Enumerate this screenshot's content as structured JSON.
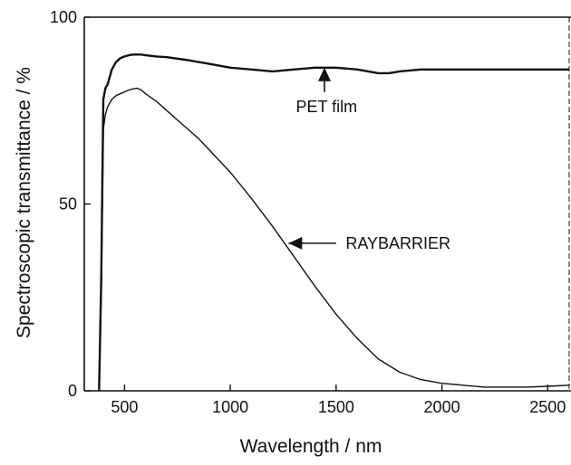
{
  "chart_data": {
    "type": "line",
    "xlabel": "Wavelength / nm",
    "ylabel": "Spectroscopic transmittance / %",
    "xlim": [
      310,
      2610
    ],
    "ylim": [
      0,
      100
    ],
    "x_ticks": [
      500,
      1000,
      1500,
      2000,
      2500
    ],
    "x_tick_labels": [
      "500",
      "1000",
      "1500",
      "2000",
      "2500"
    ],
    "y_ticks": [
      0,
      50,
      100
    ],
    "y_tick_labels": [
      "0",
      "50",
      "100"
    ],
    "grid": false,
    "legend": "none",
    "line_color": "#111111",
    "series": [
      {
        "x": [
          380,
          390,
          400,
          410,
          420,
          440,
          460,
          480,
          500,
          520,
          540,
          560,
          580,
          600,
          650,
          700,
          800,
          900,
          1000,
          1100,
          1200,
          1300,
          1400,
          1500,
          1600,
          1700,
          1750,
          1800,
          1900,
          2000,
          2100,
          2200,
          2300,
          2400,
          2500,
          2600
        ],
        "values": [
          0,
          30,
          78,
          81,
          82,
          86,
          88,
          89,
          89.5,
          89.8,
          90,
          90,
          90,
          89.8,
          89.5,
          89.3,
          88.5,
          87.5,
          86.5,
          86,
          85.5,
          86,
          86.5,
          86.5,
          86,
          85,
          85,
          85.5,
          86,
          86,
          86,
          86,
          86,
          86,
          86,
          86
        ]
      },
      {
        "x": [
          380,
          390,
          400,
          410,
          420,
          440,
          460,
          480,
          500,
          520,
          540,
          560,
          580,
          600,
          650,
          700,
          750,
          800,
          850,
          900,
          950,
          1000,
          1100,
          1200,
          1300,
          1400,
          1500,
          1600,
          1700,
          1800,
          1900,
          2000,
          2100,
          2200,
          2300,
          2400,
          2500,
          2600
        ],
        "values": [
          0,
          25,
          70,
          74,
          76,
          78,
          79,
          79.5,
          80,
          80.5,
          80.8,
          81,
          80.5,
          79.5,
          77.5,
          75,
          72.5,
          70,
          67.5,
          64.5,
          61.5,
          58.5,
          51.5,
          44,
          36,
          28,
          20.5,
          14,
          8.5,
          5,
          3,
          2,
          1.5,
          1,
          1,
          1,
          1.2,
          1.5
        ]
      }
    ],
    "annotations": [
      {
        "text": "PET film",
        "x": 1310,
        "y": 76,
        "arrow_to": [
          1445,
          86.5
        ],
        "arrow_from": [
          1445,
          80
        ]
      },
      {
        "text": "RAYBARRIER",
        "x": 1545,
        "y": 39.5,
        "arrow_to": [
          1275,
          39.5
        ],
        "arrow_from": [
          1500,
          39.5
        ]
      }
    ]
  }
}
